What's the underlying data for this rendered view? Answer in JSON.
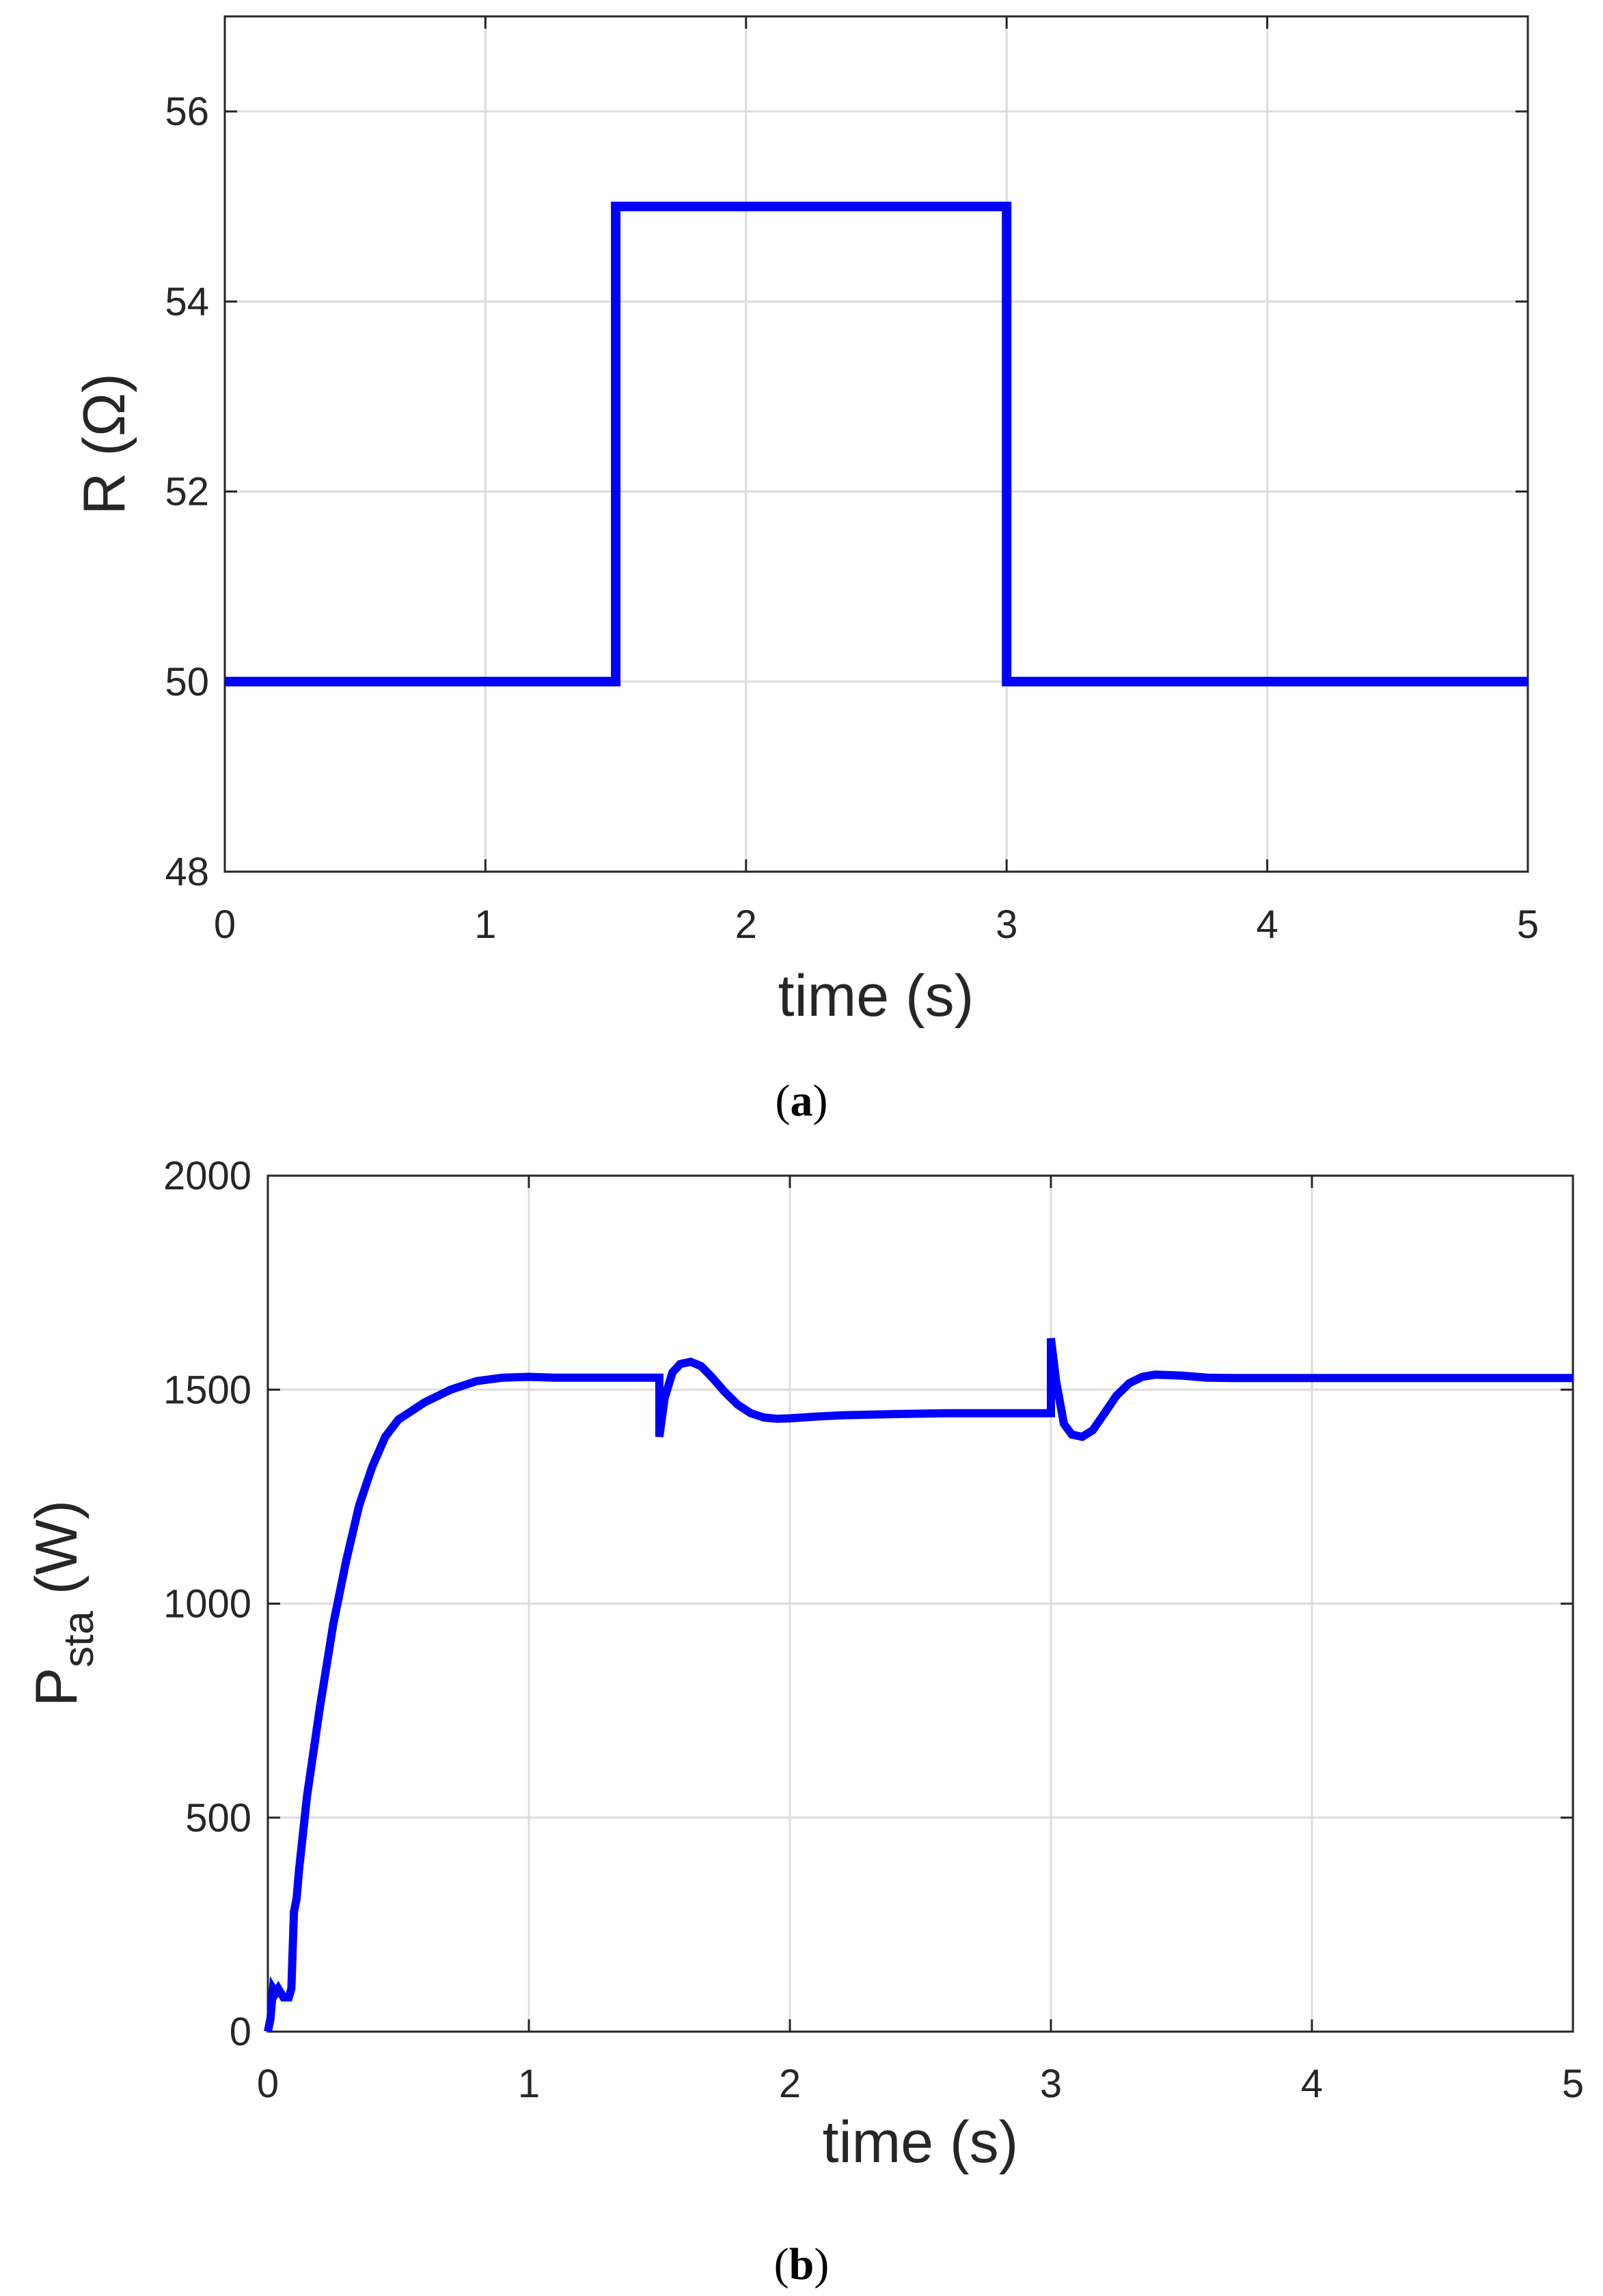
{
  "chart_data": [
    {
      "type": "line",
      "caption": {
        "open": "(",
        "letter": "a",
        "close": ")"
      },
      "xlabel": "time (s)",
      "ylabel": "R (Ω)",
      "xlim": [
        0,
        5
      ],
      "ylim": [
        48,
        57
      ],
      "xticks": [
        0,
        1,
        2,
        3,
        4,
        5
      ],
      "yticks": [
        48,
        50,
        52,
        54,
        56
      ],
      "grid": true,
      "line_color": "#0000ff",
      "series": [
        {
          "x": [
            0,
            1.5,
            1.5,
            3,
            3,
            5
          ],
          "y": [
            50,
            50,
            55,
            55,
            50,
            50
          ]
        }
      ]
    },
    {
      "type": "line",
      "caption": {
        "open": "(",
        "letter": "b",
        "close": ")"
      },
      "xlabel": "time (s)",
      "ylabel": {
        "main": "P",
        "sub": "sta",
        "unit": " (W)"
      },
      "xlim": [
        0,
        5
      ],
      "ylim": [
        0,
        2000
      ],
      "xticks": [
        0,
        1,
        2,
        3,
        4,
        5
      ],
      "yticks": [
        0,
        500,
        1000,
        1500,
        2000
      ],
      "grid": true,
      "line_color": "#0000ff",
      "series": [
        {
          "x": [
            0,
            0.01,
            0.02,
            0.03,
            0.04,
            0.06,
            0.08,
            0.09,
            0.1,
            0.11,
            0.12,
            0.15,
            0.2,
            0.25,
            0.3,
            0.35,
            0.4,
            0.45,
            0.5,
            0.55,
            0.6,
            0.7,
            0.8,
            0.9,
            1.0,
            1.1,
            1.2,
            1.3,
            1.4,
            1.5,
            1.5,
            1.52,
            1.55,
            1.58,
            1.62,
            1.66,
            1.7,
            1.75,
            1.8,
            1.85,
            1.9,
            1.95,
            2.0,
            2.1,
            2.2,
            2.4,
            2.6,
            2.8,
            3.0,
            3.0,
            3.02,
            3.05,
            3.08,
            3.12,
            3.16,
            3.2,
            3.25,
            3.3,
            3.35,
            3.4,
            3.5,
            3.6,
            3.7,
            3.8,
            4.0,
            4.5,
            5.0
          ],
          "y": [
            0,
            30,
            100,
            90,
            100,
            80,
            80,
            100,
            280,
            310,
            380,
            550,
            760,
            950,
            1100,
            1230,
            1320,
            1390,
            1430,
            1450,
            1470,
            1500,
            1520,
            1528,
            1530,
            1528,
            1528,
            1528,
            1528,
            1528,
            1390,
            1480,
            1540,
            1560,
            1565,
            1555,
            1530,
            1495,
            1465,
            1445,
            1435,
            1432,
            1433,
            1437,
            1440,
            1443,
            1445,
            1445,
            1445,
            1620,
            1520,
            1420,
            1395,
            1390,
            1405,
            1440,
            1485,
            1515,
            1530,
            1535,
            1533,
            1528,
            1527,
            1527,
            1527,
            1527,
            1527
          ]
        }
      ]
    }
  ]
}
